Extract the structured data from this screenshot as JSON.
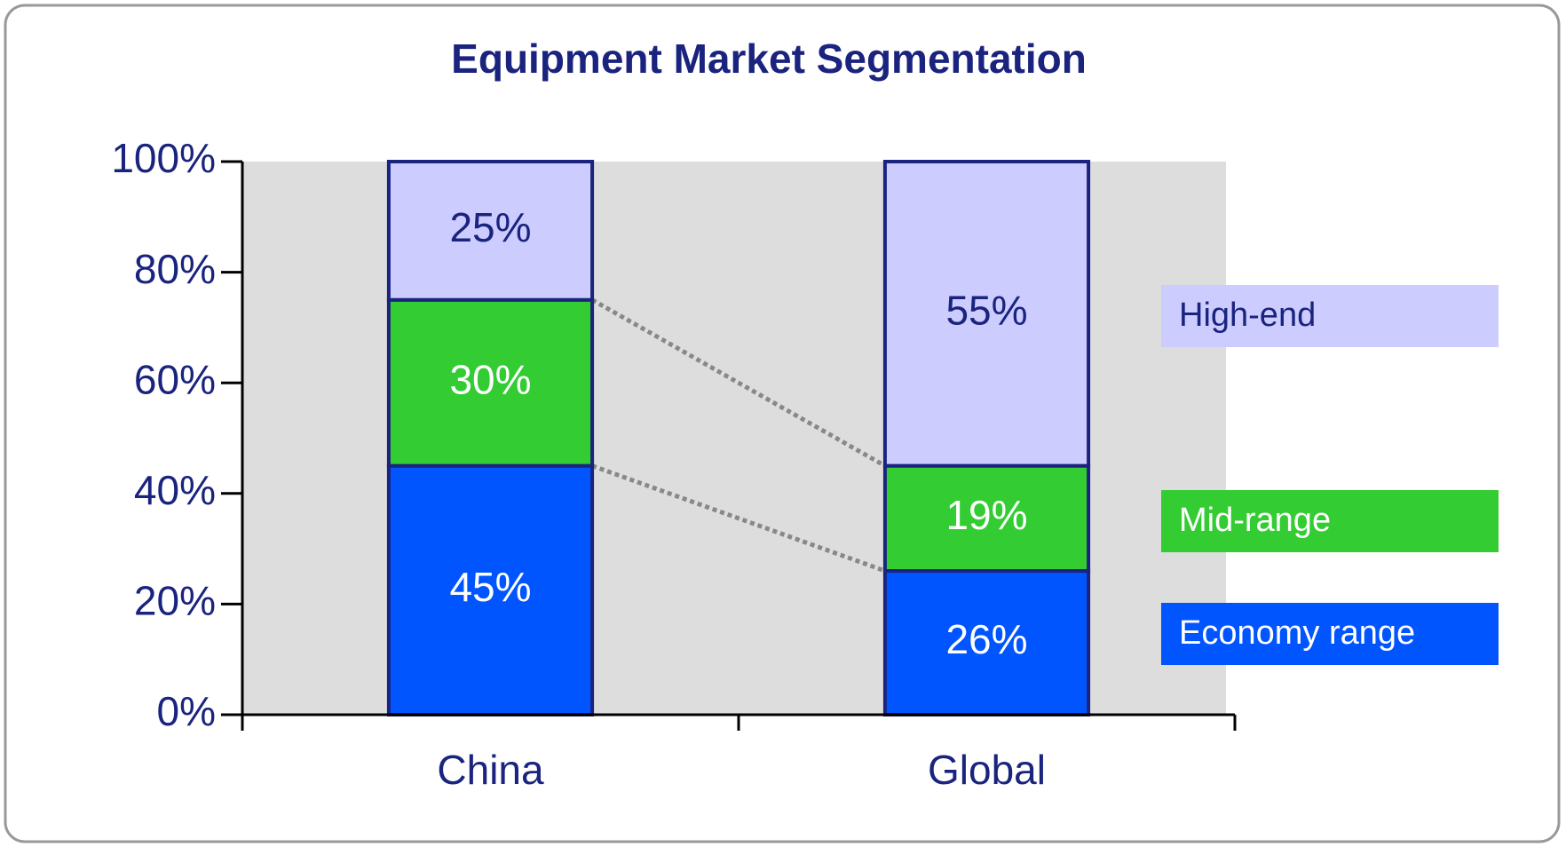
{
  "chart_data": {
    "type": "stacked_bar",
    "title": "Equipment Market Segmentation",
    "categories": [
      "China",
      "Global"
    ],
    "series": [
      {
        "name": "Economy range",
        "color": "#0055ff",
        "values": [
          45,
          26
        ],
        "value_labels": [
          "45%",
          "26%"
        ]
      },
      {
        "name": "Mid-range",
        "color": "#33cc33",
        "values": [
          30,
          19
        ],
        "value_labels": [
          "30%",
          "19%"
        ]
      },
      {
        "name": "High-end",
        "color": "#ccccff",
        "values": [
          25,
          55
        ],
        "value_labels": [
          "25%",
          "55%"
        ]
      }
    ],
    "ylim": [
      0,
      100
    ],
    "yticks": [
      {
        "value": 0,
        "label": "0%"
      },
      {
        "value": 20,
        "label": "20%"
      },
      {
        "value": 40,
        "label": "40%"
      },
      {
        "value": 60,
        "label": "60%"
      },
      {
        "value": 80,
        "label": "80%"
      },
      {
        "value": 100,
        "label": "100%"
      }
    ]
  }
}
